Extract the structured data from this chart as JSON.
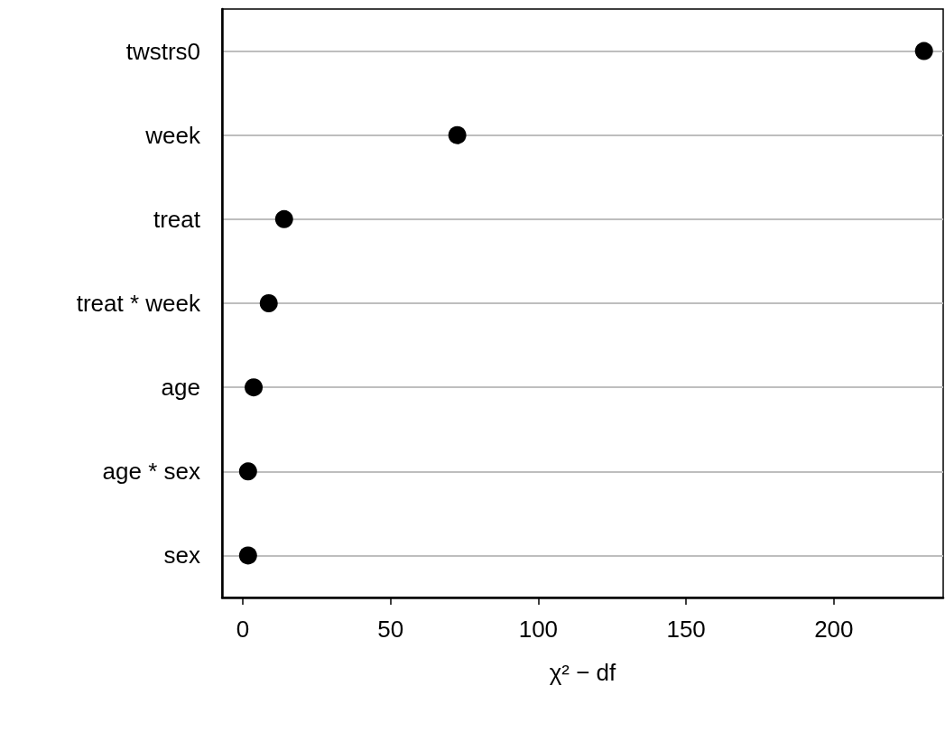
{
  "chart_data": {
    "type": "scatter",
    "orientation": "horizontal",
    "xlabel": "χ² − df",
    "categories": [
      "twstrs0",
      "week",
      "treat",
      "treat * week",
      "age",
      "age * sex",
      "sex"
    ],
    "values": [
      230.5,
      72.6,
      14,
      8.8,
      3.7,
      1.8,
      1.8
    ],
    "color": "#000000",
    "marker": "circle",
    "xlim": [
      -7,
      237
    ],
    "xticks": [
      0,
      50,
      100,
      150,
      200
    ],
    "grid": "y"
  }
}
